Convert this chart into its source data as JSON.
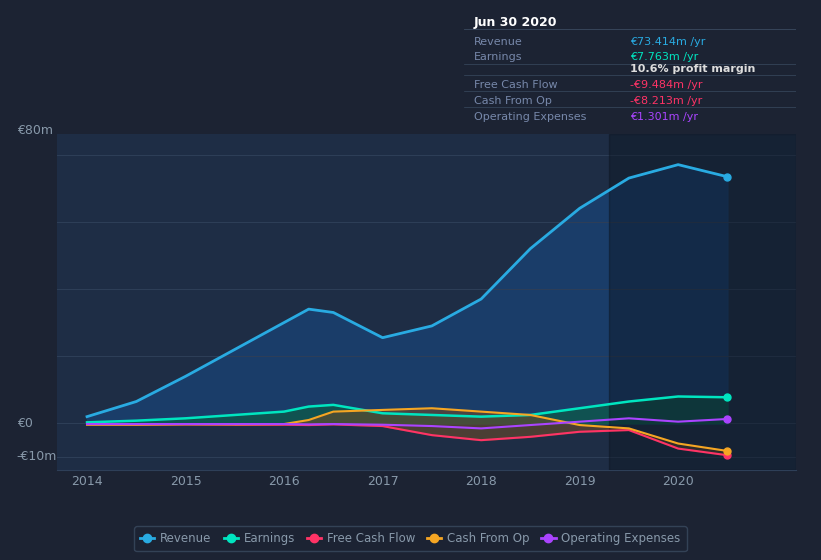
{
  "bg_color": "#1c2333",
  "plot_bg_color": "#1e2d45",
  "grid_color": "#2e3f58",
  "text_color": "#8899aa",
  "tick_color": "#8899aa",
  "title_color": "#ffffff",
  "years": [
    2014,
    2014.5,
    2015,
    2015.5,
    2016,
    2016.25,
    2016.5,
    2017,
    2017.5,
    2018,
    2018.5,
    2019,
    2019.5,
    2020,
    2020.5
  ],
  "revenue": [
    2.0,
    6.5,
    14.0,
    22.0,
    30.0,
    34.0,
    33.0,
    25.5,
    29.0,
    37.0,
    52.0,
    64.0,
    73.0,
    77.0,
    73.4
  ],
  "earnings": [
    0.3,
    0.8,
    1.5,
    2.5,
    3.5,
    5.0,
    5.5,
    3.0,
    2.5,
    2.0,
    2.5,
    4.5,
    6.5,
    8.0,
    7.763
  ],
  "free_cash_flow": [
    -0.3,
    -0.4,
    -0.3,
    -0.4,
    -0.4,
    -0.5,
    -0.3,
    -0.8,
    -3.5,
    -5.0,
    -4.0,
    -2.5,
    -2.0,
    -7.5,
    -9.484
  ],
  "cash_from_op": [
    -0.4,
    -0.4,
    -0.3,
    -0.3,
    -0.2,
    1.0,
    3.5,
    4.0,
    4.5,
    3.5,
    2.5,
    -0.5,
    -1.5,
    -6.0,
    -8.213
  ],
  "op_expenses": [
    -0.2,
    -0.2,
    -0.2,
    -0.2,
    -0.2,
    -0.3,
    -0.2,
    -0.4,
    -0.8,
    -1.5,
    -0.5,
    0.5,
    1.5,
    0.5,
    1.301
  ],
  "revenue_color": "#29abe2",
  "earnings_color": "#00e5c0",
  "free_cash_flow_color": "#ff3366",
  "cash_from_op_color": "#f5a623",
  "op_expenses_color": "#aa44ff",
  "revenue_fill": "#1a4070",
  "earnings_fill": "#0d5a4a",
  "infobox_bg": "#090e17",
  "infobox_border": "#3a4a60",
  "ylabel_80": "€80m",
  "ylabel_0": "€0",
  "ylabel_neg10": "-€10m",
  "legend_items": [
    "Revenue",
    "Earnings",
    "Free Cash Flow",
    "Cash From Op",
    "Operating Expenses"
  ],
  "legend_colors": [
    "#29abe2",
    "#00e5c0",
    "#ff3366",
    "#f5a623",
    "#aa44ff"
  ],
  "info_title": "Jun 30 2020",
  "info_rows": [
    {
      "label": "Revenue",
      "value": "€73.414m /yr",
      "value_color": "#29abe2",
      "bold": false
    },
    {
      "label": "Earnings",
      "value": "€7.763m /yr",
      "value_color": "#00e5c0",
      "bold": false
    },
    {
      "label": "",
      "value": "10.6% profit margin",
      "value_color": "#dddddd",
      "bold": true
    },
    {
      "label": "Free Cash Flow",
      "value": "-€9.484m /yr",
      "value_color": "#ff3366",
      "bold": false
    },
    {
      "label": "Cash From Op",
      "value": "-€8.213m /yr",
      "value_color": "#ff3366",
      "bold": false
    },
    {
      "label": "Operating Expenses",
      "value": "€1.301m /yr",
      "value_color": "#aa44ff",
      "bold": false
    }
  ],
  "ylim": [
    -14,
    86
  ],
  "xlim": [
    2013.7,
    2021.2
  ]
}
